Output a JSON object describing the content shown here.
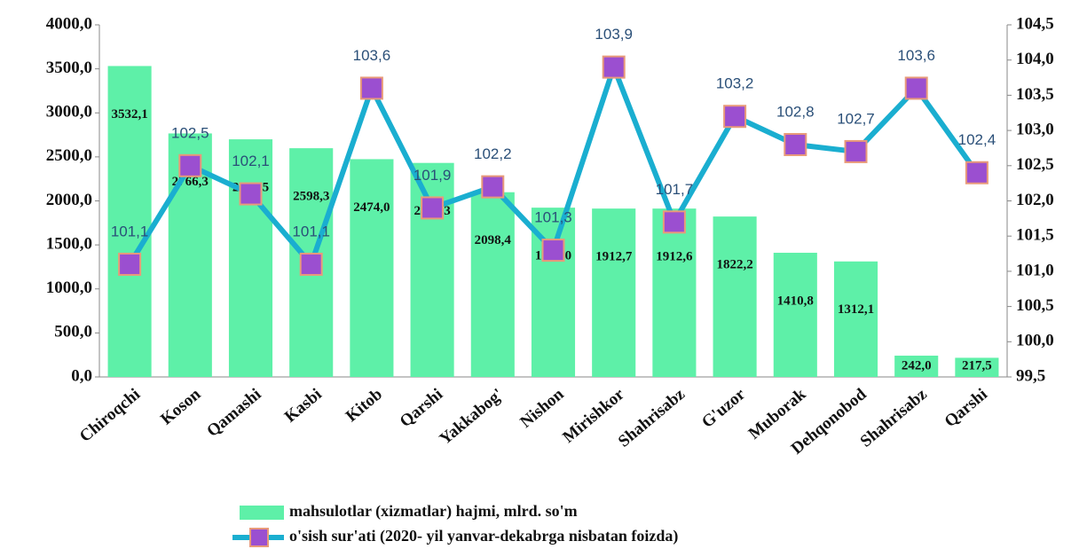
{
  "chart_data": {
    "type": "bar",
    "categories": [
      "Chiroqchi",
      "Koson",
      "Qamashi",
      "Kasbi",
      "Kitob",
      "Qarshi",
      "Yakkabog'",
      "Nishon",
      "Mirishkor",
      "Shahrisabz",
      "G'uzor",
      "Muborak",
      "Dehqonobod",
      "Shahrisabz",
      "Qarshi"
    ],
    "series": [
      {
        "name": "mahsulotlar (xizmatlar) hajmi, mlrd. so'm",
        "type": "bar",
        "color": "#5ef0a8",
        "values": [
          3532.1,
          2766.3,
          2699.5,
          2598.3,
          2474.0,
          2431.3,
          2098.4,
          1923.0,
          1912.7,
          1912.6,
          1822.2,
          1410.8,
          1312.1,
          242.0,
          217.5
        ],
        "value_labels": [
          "3532,1",
          "2766,3",
          "2699,5",
          "2598,3",
          "2474,0",
          "2431,3",
          "2098,4",
          "1923,0",
          "1912,7",
          "1912,6",
          "1822,2",
          "1410,8",
          "1312,1",
          "242,0",
          "217,5"
        ]
      },
      {
        "name": "o'sish sur'ati (2020- yil yanvar-dekabrga nisbatan foizda)",
        "type": "line",
        "color": "#1aaed0",
        "marker_color": "#9b4fd0",
        "axis": "y2",
        "values": [
          101.1,
          102.5,
          102.1,
          101.1,
          103.6,
          101.9,
          102.2,
          101.3,
          103.9,
          101.7,
          103.2,
          102.8,
          102.7,
          103.6,
          102.4
        ],
        "value_labels": [
          "101,1",
          "102,5",
          "102,1",
          "101,1",
          "103,6",
          "101,9",
          "102,2",
          "101,3",
          "103,9",
          "101,7",
          "103,2",
          "102,8",
          "102,7",
          "103,6",
          "102,4"
        ]
      }
    ],
    "ylim": [
      0,
      4000
    ],
    "yticks": [
      {
        "value": 0,
        "label": "0,0"
      },
      {
        "value": 500,
        "label": "500,0"
      },
      {
        "value": 1000,
        "label": "1000,0"
      },
      {
        "value": 1500,
        "label": "1500,0"
      },
      {
        "value": 2000,
        "label": "2000,0"
      },
      {
        "value": 2500,
        "label": "2500,0"
      },
      {
        "value": 3000,
        "label": "3000,0"
      },
      {
        "value": 3500,
        "label": "3500,0"
      },
      {
        "value": 4000,
        "label": "4000,0"
      }
    ],
    "y2lim": [
      99.5,
      104.5
    ],
    "y2ticks": [
      {
        "value": 99.5,
        "label": "99,5"
      },
      {
        "value": 100,
        "label": "100,0"
      },
      {
        "value": 100.5,
        "label": "100,5"
      },
      {
        "value": 101,
        "label": "101,0"
      },
      {
        "value": 101.5,
        "label": "101,5"
      },
      {
        "value": 102,
        "label": "102,0"
      },
      {
        "value": 102.5,
        "label": "102,5"
      },
      {
        "value": 103,
        "label": "103,0"
      },
      {
        "value": 103.5,
        "label": "103,5"
      },
      {
        "value": 104,
        "label": "104,0"
      },
      {
        "value": 104.5,
        "label": "104,5"
      }
    ],
    "legend": "bottom"
  }
}
